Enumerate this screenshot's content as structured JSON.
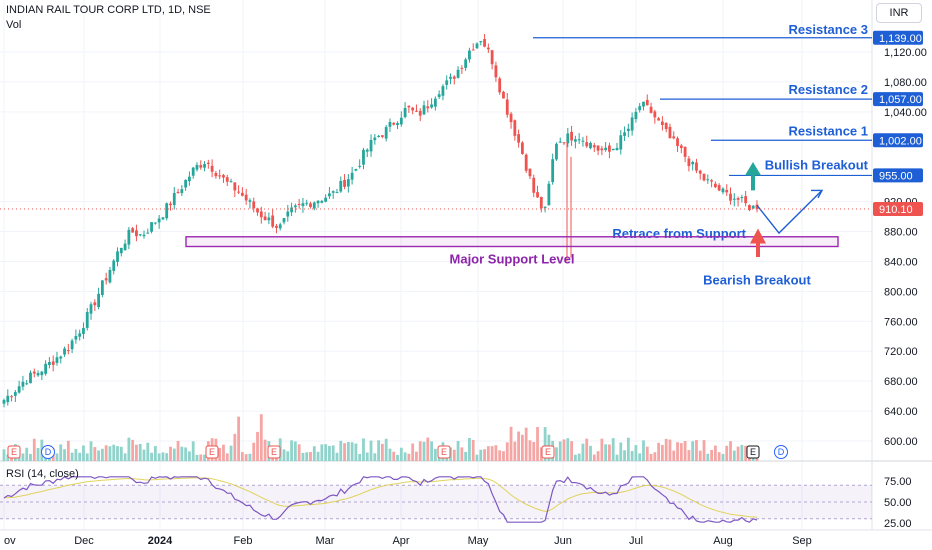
{
  "header": {
    "title": "INDIAN RAIL TOUR CORP LTD, 1D, NSE",
    "vol_label": "Vol",
    "currency": "INR"
  },
  "colors": {
    "up": "#26a69a",
    "down": "#ef5350",
    "vol_up": "#8fd3cb",
    "vol_down": "#f5a6a4",
    "annotation_blue": "#1f5fd6",
    "support_purple": "#9c27b0",
    "rsi_line": "#7e57c2",
    "rsi_ma": "#e0d35a",
    "last_price": "#ef5350"
  },
  "price_axis": {
    "ticks": [
      "1,120.00",
      "1,080.00",
      "1,040.00",
      "920.00",
      "880.00",
      "840.00",
      "800.00",
      "760.00",
      "720.00",
      "680.00",
      "640.00",
      "600.00"
    ],
    "tick_values": [
      1120,
      1080,
      1040,
      920,
      880,
      840,
      800,
      760,
      720,
      680,
      640,
      600
    ]
  },
  "level_tags": [
    {
      "value": 1139,
      "label": "1,139.00",
      "type": "blue"
    },
    {
      "value": 1057,
      "label": "1,057.00",
      "type": "blue"
    },
    {
      "value": 1002,
      "label": "1,002.00",
      "type": "blue"
    },
    {
      "value": 955,
      "label": "955.00",
      "type": "blue"
    },
    {
      "value": 910.1,
      "label": "910.10",
      "type": "red"
    }
  ],
  "annotations": {
    "resistance_3": "Resistance 3",
    "resistance_2": "Resistance 2",
    "resistance_1": "Resistance 1",
    "bullish": "Bullish Breakout",
    "retrace": "Retrace from Support",
    "major_support": "Major Support Level",
    "bearish": "Bearish Breakout"
  },
  "time_axis": {
    "labels": [
      "ov",
      "Dec",
      "2024",
      "Feb",
      "Mar",
      "Apr",
      "May",
      "Jun",
      "Jul",
      "Aug",
      "Sep"
    ]
  },
  "events": [
    "E",
    "D",
    "E",
    "E",
    "E",
    "E",
    "D"
  ],
  "rsi": {
    "label": "RSI (14, close)",
    "ticks": [
      "75.00",
      "50.00",
      "25.00"
    ],
    "tick_values": [
      75,
      50,
      25
    ]
  },
  "chart_data": [
    {
      "type": "candlestick",
      "title": "INDIAN RAIL TOUR CORP LTD, 1D, NSE",
      "ylim": [
        585,
        1160
      ],
      "x": [
        "Nov",
        "Dec",
        "2024",
        "Feb",
        "Mar",
        "Apr",
        "May",
        "Jun",
        "Jul",
        "Aug",
        "Sep"
      ],
      "close_path": [
        655,
        668,
        682,
        690,
        700,
        712,
        725,
        745,
        770,
        800,
        830,
        860,
        880,
        875,
        890,
        905,
        925,
        945,
        965,
        975,
        960,
        945,
        935,
        920,
        905,
        895,
        885,
        905,
        915,
        920,
        925,
        930,
        945,
        960,
        985,
        1005,
        1015,
        1030,
        1045,
        1035,
        1050,
        1070,
        1080,
        1100,
        1125,
        1139,
        1110,
        1060,
        1020,
        980,
        930,
        905,
        1000,
        1005,
        1010,
        1000,
        990,
        985,
        1000,
        1020,
        1050,
        1040,
        1020,
        1000,
        985,
        965,
        950,
        940,
        930,
        925,
        915,
        910.1
      ],
      "last_price": 910.1,
      "levels": {
        "resistance_3": 1139,
        "resistance_2": 1057,
        "resistance_1": 1002,
        "bullish_breakout": 955,
        "support_zone": [
          860,
          873
        ]
      }
    },
    {
      "type": "line",
      "title": "RSI (14, close)",
      "ylim": [
        20,
        80
      ],
      "bands": [
        30,
        50,
        70
      ],
      "series": [
        {
          "name": "RSI (14, close)"
        }
      ]
    }
  ]
}
